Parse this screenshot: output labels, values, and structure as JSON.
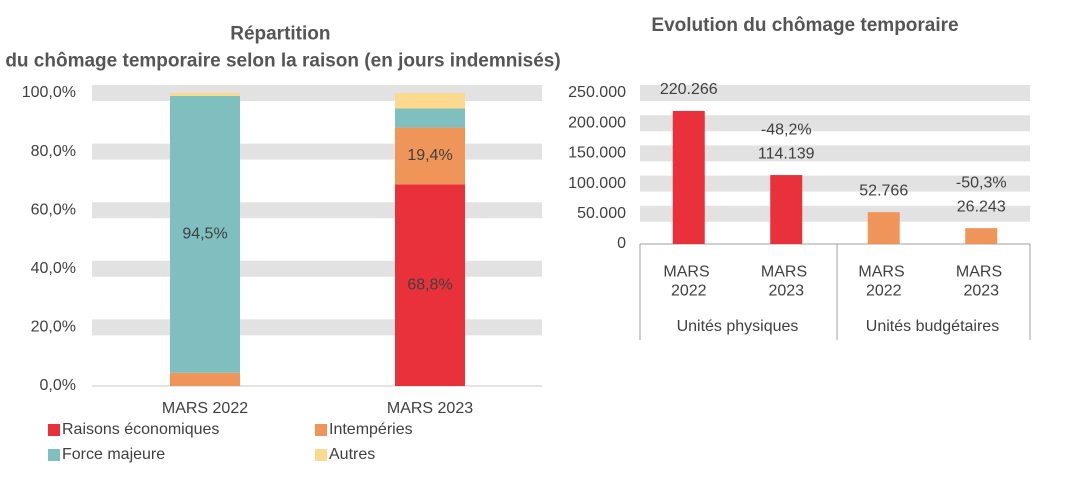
{
  "chart_data": [
    {
      "type": "stacked-bar",
      "title": "Répartition du chômage temporaire selon la raison (en jours indemnisés)",
      "categories": [
        "MARS 2022",
        "MARS 2023"
      ],
      "series": [
        {
          "name": "Raisons économiques",
          "color": "#e8313a",
          "values": [
            0,
            68.8
          ],
          "value_labels": [
            null,
            "68,8%"
          ]
        },
        {
          "name": "Intempéries",
          "color": "#f0955a",
          "values": [
            4.5,
            19.4
          ],
          "value_labels": [
            null,
            "19,4%"
          ]
        },
        {
          "name": "Force majeure",
          "color": "#7fbfbf",
          "values": [
            94.5,
            6.5
          ],
          "value_labels": [
            "94,5%",
            null
          ]
        },
        {
          "name": "Autres",
          "color": "#fcd98e",
          "values": [
            1.0,
            5.3
          ],
          "value_labels": [
            null,
            null
          ]
        }
      ],
      "ylim": [
        0,
        100
      ],
      "yticks": [
        {
          "value": 0,
          "label": "0,0%"
        },
        {
          "value": 20,
          "label": "20,0%"
        },
        {
          "value": 40,
          "label": "40,0%"
        },
        {
          "value": 60,
          "label": "60,0%"
        },
        {
          "value": 80,
          "label": "80,0%"
        },
        {
          "value": 100,
          "label": "100,0%"
        }
      ],
      "grid": true,
      "legend": "bottom"
    },
    {
      "type": "bar",
      "title": "Evolution du chômage temporaire",
      "categories": [
        "MARS 2022",
        "MARS 2023",
        "MARS 2022",
        "MARS 2023"
      ],
      "groups": [
        "Unités physiques",
        "Unités budgétaires"
      ],
      "values": [
        220266,
        114139,
        52766,
        26243
      ],
      "value_labels": [
        "220.266",
        "114.139",
        "52.766",
        "26.243"
      ],
      "annotations": [
        null,
        "-48,2%",
        null,
        "-50,3%"
      ],
      "colors": [
        "#e8313a",
        "#e8313a",
        "#f0955a",
        "#f0955a"
      ],
      "ylim": [
        0,
        250000
      ],
      "yticks": [
        0,
        {
          "value": 50000,
          "label": "50.000"
        },
        {
          "value": 100000,
          "label": "100.000"
        },
        {
          "value": 150000,
          "label": "150.000"
        },
        {
          "value": 200000,
          "label": "200.000"
        },
        {
          "value": 250000,
          "label": "250.000"
        }
      ],
      "grid": true
    }
  ]
}
